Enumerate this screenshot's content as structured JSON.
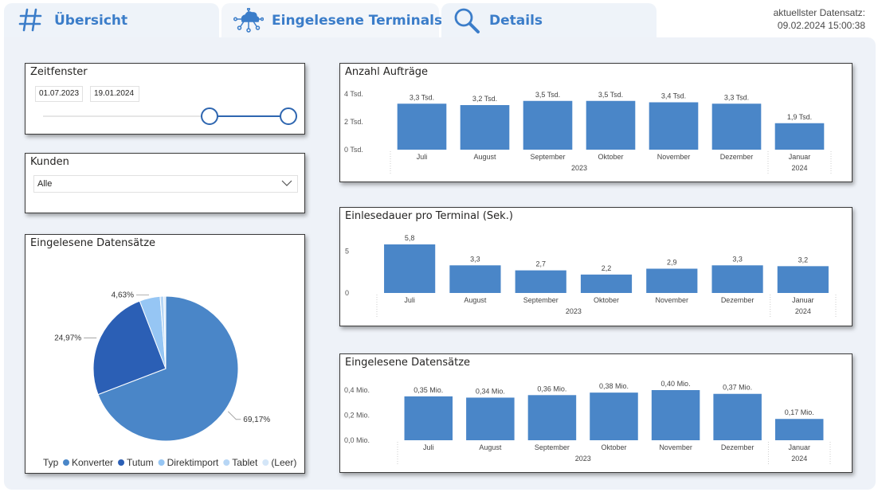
{
  "tabs": [
    {
      "label": "Übersicht",
      "icon": "hashtag-icon",
      "active": false
    },
    {
      "label": "Eingelesene Terminals",
      "icon": "cloud-network-icon",
      "active": true
    },
    {
      "label": "Details",
      "icon": "search-icon",
      "active": false
    }
  ],
  "data_stamp": {
    "label": "aktuellster Datensatz:",
    "value": "09.02.2024 15:00:38"
  },
  "colors": {
    "accent": "#3b7dc9",
    "bar": "#4a86c8",
    "handle": "#2e66b0"
  },
  "filters": {
    "zeitfenster": {
      "title": "Zeitfenster",
      "from": "01.07.2023",
      "to": "19.01.2024",
      "from_fraction": 0.68,
      "to_fraction": 1.0
    },
    "kunden": {
      "title": "Kunden",
      "selected": "Alle",
      "icon": "chevron-down-icon"
    }
  },
  "chart_data": [
    {
      "type": "pie",
      "title": "Eingelesene Datensätze",
      "legend_title": "Typ",
      "legend_position": "bottom",
      "slices": [
        {
          "name": "Konverter",
          "value": 69.17,
          "label": "69,17%",
          "color": "#4a86c8"
        },
        {
          "name": "Tutum",
          "value": 24.97,
          "label": "24,97%",
          "color": "#2b5fb5"
        },
        {
          "name": "Direktimport",
          "value": 4.63,
          "label": "4,63%",
          "color": "#96c6f4"
        },
        {
          "name": "Tablet",
          "value": 0.8,
          "label": "",
          "color": "#b7d6f5"
        },
        {
          "name": "(Leer)",
          "value": 0.43,
          "label": "",
          "color": "#d4e6f8"
        }
      ]
    },
    {
      "type": "bar",
      "title": "Anzahl Aufträge",
      "categories": [
        "Juli",
        "August",
        "September",
        "Oktober",
        "November",
        "Dezember",
        "Januar"
      ],
      "groups": [
        {
          "label": "2023",
          "span": 6
        },
        {
          "label": "2024",
          "span": 1
        }
      ],
      "values": [
        3300,
        3200,
        3500,
        3500,
        3400,
        3300,
        1900
      ],
      "data_labels": [
        "3,3 Tsd.",
        "3,2 Tsd.",
        "3,5 Tsd.",
        "3,5 Tsd.",
        "3,4 Tsd.",
        "3,3 Tsd.",
        "1,9 Tsd."
      ],
      "yticks": [
        {
          "value": 0,
          "label": "0 Tsd."
        },
        {
          "value": 2000,
          "label": "2 Tsd."
        },
        {
          "value": 4000,
          "label": "4 Tsd."
        }
      ],
      "ylim": [
        0,
        4000
      ],
      "grid": false
    },
    {
      "type": "bar",
      "title": "Einlesedauer pro Terminal (Sek.)",
      "categories": [
        "Juli",
        "August",
        "September",
        "Oktober",
        "November",
        "Dezember",
        "Januar"
      ],
      "groups": [
        {
          "label": "2023",
          "span": 6
        },
        {
          "label": "2024",
          "span": 1
        }
      ],
      "values": [
        5.8,
        3.3,
        2.7,
        2.2,
        2.9,
        3.3,
        3.2
      ],
      "data_labels": [
        "5,8",
        "3,3",
        "2,7",
        "2,2",
        "2,9",
        "3,3",
        "3,2"
      ],
      "yticks": [
        {
          "value": 0,
          "label": "0"
        },
        {
          "value": 5,
          "label": "5"
        }
      ],
      "ylim": [
        0,
        5.8
      ],
      "grid": false
    },
    {
      "type": "bar",
      "title": "Eingelesene Datensätze",
      "categories": [
        "Juli",
        "August",
        "September",
        "Oktober",
        "November",
        "Dezember",
        "Januar"
      ],
      "groups": [
        {
          "label": "2023",
          "span": 6
        },
        {
          "label": "2024",
          "span": 1
        }
      ],
      "values": [
        0.35,
        0.34,
        0.36,
        0.38,
        0.4,
        0.37,
        0.17
      ],
      "data_labels": [
        "0,35 Mio.",
        "0,34 Mio.",
        "0,36 Mio.",
        "0,38 Mio.",
        "0,40 Mio.",
        "0,37 Mio.",
        "0,17 Mio."
      ],
      "yticks": [
        {
          "value": 0,
          "label": "0,0 Mio."
        },
        {
          "value": 0.2,
          "label": "0,2 Mio."
        },
        {
          "value": 0.4,
          "label": "0,4 Mio."
        }
      ],
      "ylim": [
        0,
        0.4
      ],
      "grid": false
    }
  ]
}
